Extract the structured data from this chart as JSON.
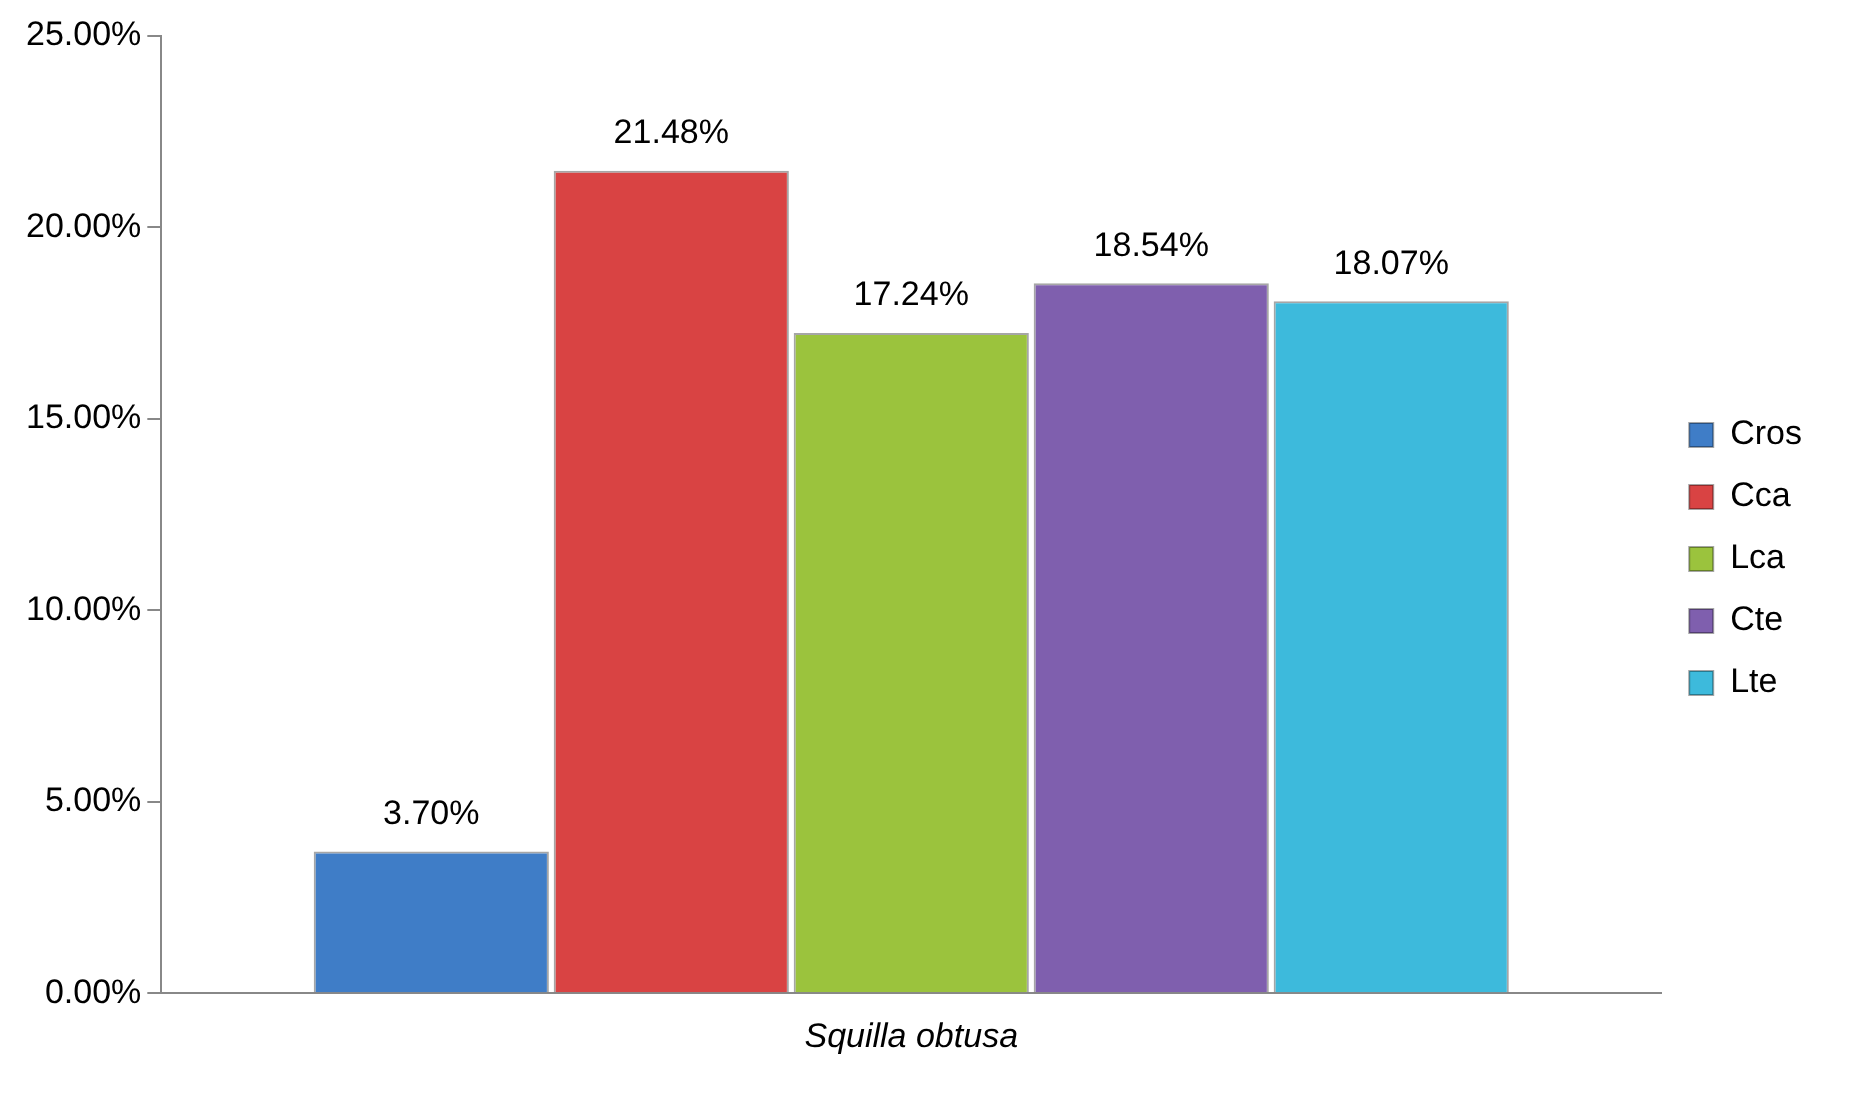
{
  "chart_data": {
    "type": "bar",
    "categories": [
      "Squilla obtusa"
    ],
    "series": [
      {
        "name": "Cros",
        "color": "#3f7dc7",
        "values": [
          3.7
        ],
        "value_labels": [
          "3.70%"
        ]
      },
      {
        "name": "Cca",
        "color": "#d94343",
        "values": [
          21.48
        ],
        "value_labels": [
          "21.48%"
        ]
      },
      {
        "name": "Lca",
        "color": "#9bc33d",
        "values": [
          17.24
        ],
        "value_labels": [
          "17.24%"
        ]
      },
      {
        "name": "Cte",
        "color": "#7f5fae",
        "values": [
          18.54
        ],
        "value_labels": [
          "18.54%"
        ]
      },
      {
        "name": "Lte",
        "color": "#3dbadc",
        "values": [
          18.07
        ],
        "value_labels": [
          "18.07%"
        ]
      }
    ],
    "ylim": [
      0,
      25
    ],
    "yticks": [
      {
        "value": 0,
        "label": "0.00%"
      },
      {
        "value": 5,
        "label": "5.00%"
      },
      {
        "value": 10,
        "label": "10.00%"
      },
      {
        "value": 15,
        "label": "15.00%"
      },
      {
        "value": 20,
        "label": "20.00%"
      },
      {
        "value": 25,
        "label": "25.00%"
      }
    ],
    "grid": false,
    "legend": "right"
  }
}
